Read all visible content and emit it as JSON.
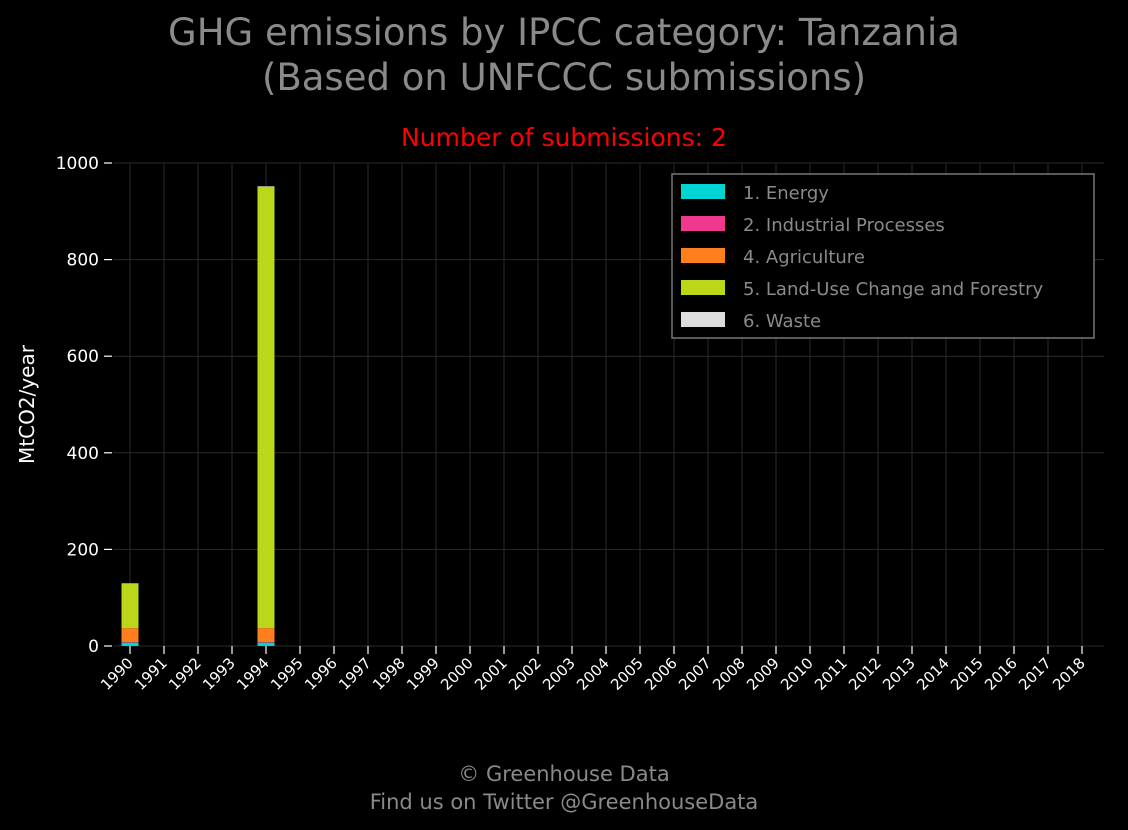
{
  "title_line1": "GHG emissions by IPCC category: Tanzania",
  "title_line2": "(Based on UNFCCC submissions)",
  "subtitle": "Number of submissions: 2",
  "subtitle_color": "#ff0000",
  "footer_line1": "© Greenhouse Data",
  "footer_line2": "Find us on Twitter @GreenhouseData",
  "chart_data": {
    "type": "bar",
    "stacked": true,
    "categories": [
      "1990",
      "1991",
      "1992",
      "1993",
      "1994",
      "1995",
      "1996",
      "1997",
      "1998",
      "1999",
      "2000",
      "2001",
      "2002",
      "2003",
      "2004",
      "2005",
      "2006",
      "2007",
      "2008",
      "2009",
      "2010",
      "2011",
      "2012",
      "2013",
      "2014",
      "2015",
      "2016",
      "2017",
      "2018"
    ],
    "ylabel": "MtCO2/year",
    "xlabel": "",
    "ylim": [
      0,
      1000
    ],
    "yticks": [
      0,
      200,
      400,
      600,
      800,
      1000
    ],
    "grid": true,
    "legend_position": "top-right",
    "series": [
      {
        "name": "1. Energy",
        "color": "#00d4d4",
        "values": [
          7,
          null,
          null,
          null,
          7,
          null,
          null,
          null,
          null,
          null,
          null,
          null,
          null,
          null,
          null,
          null,
          null,
          null,
          null,
          null,
          null,
          null,
          null,
          null,
          null,
          null,
          null,
          null,
          null
        ]
      },
      {
        "name": "2. Industrial Processes",
        "color": "#f0388f",
        "values": [
          1,
          null,
          null,
          null,
          1,
          null,
          null,
          null,
          null,
          null,
          null,
          null,
          null,
          null,
          null,
          null,
          null,
          null,
          null,
          null,
          null,
          null,
          null,
          null,
          null,
          null,
          null,
          null,
          null
        ]
      },
      {
        "name": "4. Agriculture",
        "color": "#ff7f1e",
        "values": [
          29,
          null,
          null,
          null,
          29,
          null,
          null,
          null,
          null,
          null,
          null,
          null,
          null,
          null,
          null,
          null,
          null,
          null,
          null,
          null,
          null,
          null,
          null,
          null,
          null,
          null,
          null,
          null,
          null
        ]
      },
      {
        "name": "5. Land-Use Change and Forestry",
        "color": "#bcd61a",
        "values": [
          92,
          null,
          null,
          null,
          914,
          null,
          null,
          null,
          null,
          null,
          null,
          null,
          null,
          null,
          null,
          null,
          null,
          null,
          null,
          null,
          null,
          null,
          null,
          null,
          null,
          null,
          null,
          null,
          null
        ]
      },
      {
        "name": "6. Waste",
        "color": "#dcdcdc",
        "values": [
          1,
          null,
          null,
          null,
          1,
          null,
          null,
          null,
          null,
          null,
          null,
          null,
          null,
          null,
          null,
          null,
          null,
          null,
          null,
          null,
          null,
          null,
          null,
          null,
          null,
          null,
          null,
          null,
          null
        ]
      }
    ]
  }
}
